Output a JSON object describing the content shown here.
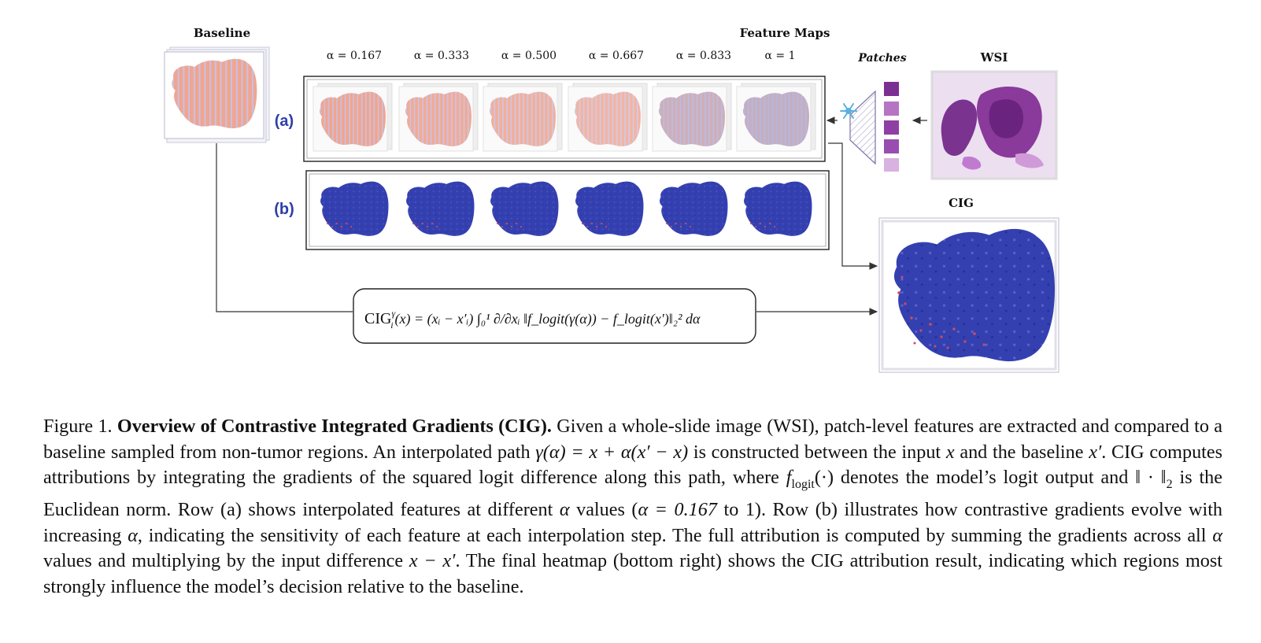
{
  "figure": {
    "baseline_title": "Baseline",
    "feature_maps_title": "Feature Maps",
    "patches_title": "Patches",
    "wsi_title": "WSI",
    "cig_title": "CIG",
    "alpha_labels": [
      "α = 0.167",
      "α = 0.333",
      "α = 0.500",
      "α = 0.667",
      "α = 0.833",
      "α = 1"
    ],
    "row_a_label": "(a)",
    "row_b_label": "(b)",
    "formula": {
      "lhs": "CIG",
      "sup": "γ",
      "sub": "i",
      "rest": "(x) = (xᵢ − x′ᵢ) ∫₀¹ ∂/∂xᵢ ‖f_logit(γ(α)) − f_logit(x′)‖₂² dα"
    },
    "colors": {
      "feature_map": "#ee9a80",
      "gradient_map": "#3440b0",
      "row_label": "#2d3fa8",
      "wsi_stain": "#8a3a9a"
    }
  },
  "caption": {
    "label": "Figure 1.",
    "title": "Overview of Contrastive Integrated Gradients (CIG).",
    "s1": "Given a whole-slide image (WSI), patch-level features are extracted and compared to a baseline sampled from non-tumor regions. An interpolated path",
    "path_formula": "γ(α) = x + α(x′ − x)",
    "s2": "is constructed between the input",
    "x": "x",
    "s3": "and the baseline",
    "xprime": "x′",
    "s4": ". CIG computes attributions by integrating the gradients of the squared logit difference along this path, where",
    "flogit": "f",
    "flogit_sub": "logit",
    "flogit_arg": "(·)",
    "s5": "denotes the model’s logit output and",
    "norm": "‖ · ‖",
    "norm_sub": "2",
    "s6": "is the Euclidean norm. Row (a) shows interpolated features at different",
    "alpha": "α",
    "s7": "values (",
    "alpha_range": "α = 0.167",
    "s8": "to 1). Row (b) illustrates how contrastive gradients evolve with increasing",
    "s9": ", indicating the sensitivity of each feature at each interpolation step. The full attribution is computed by summing the gradients across all",
    "s10": "values and multiplying by the input difference",
    "diff": "x − x′",
    "s11": ". The final heatmap (bottom right) shows the CIG attribution result, indicating which regions most strongly influence the model’s decision relative to the baseline."
  }
}
